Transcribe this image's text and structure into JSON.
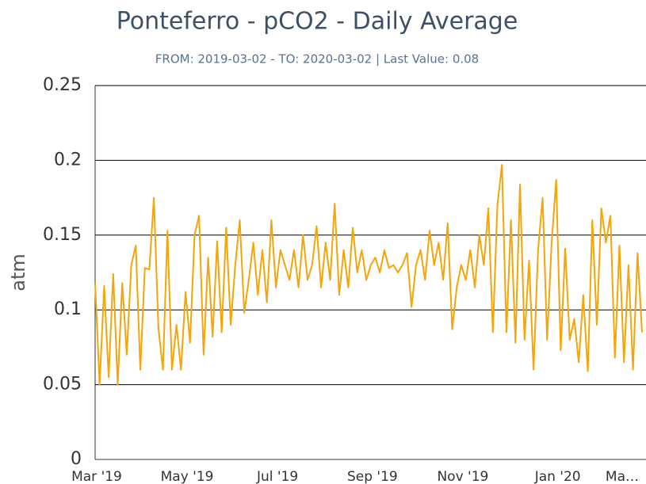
{
  "chart_data": {
    "type": "line",
    "title": "Ponteferro - pCO2 - Daily Average",
    "subtitle": "FROM: 2019-03-02 - TO: 2020-03-02 | Last Value: 0.08",
    "y_label": "atm",
    "ylim": [
      0,
      0.25
    ],
    "yticks": [
      0,
      0.05,
      0.1,
      0.15,
      0.2,
      0.25
    ],
    "grid": true,
    "categories": [
      "Mar '19",
      null,
      null,
      null,
      null,
      null,
      null,
      null,
      null,
      null,
      null,
      null,
      null,
      null,
      null,
      null,
      null,
      null,
      null,
      null,
      "May '19",
      null,
      null,
      null,
      null,
      null,
      null,
      null,
      null,
      null,
      null,
      null,
      null,
      null,
      null,
      null,
      null,
      null,
      null,
      null,
      "Jul '19",
      null,
      null,
      null,
      null,
      null,
      null,
      null,
      null,
      null,
      null,
      null,
      null,
      null,
      null,
      null,
      null,
      null,
      null,
      null,
      null,
      "Sep '19",
      null,
      null,
      null,
      null,
      null,
      null,
      null,
      null,
      null,
      null,
      null,
      null,
      null,
      null,
      null,
      null,
      null,
      null,
      null,
      "Nov '19",
      null,
      null,
      null,
      null,
      null,
      null,
      null,
      null,
      null,
      null,
      null,
      null,
      null,
      null,
      null,
      null,
      null,
      null,
      null,
      null,
      "Jan '20",
      null,
      null,
      null,
      null,
      null,
      null,
      null,
      null,
      null,
      null,
      null,
      null,
      null,
      null,
      null,
      null,
      null,
      null,
      "Ma…"
    ],
    "series": [
      {
        "name": "pCO2",
        "color": "#f5a40c",
        "values": [
          0.118,
          0.05,
          0.116,
          0.055,
          0.124,
          0.05,
          0.118,
          0.07,
          0.13,
          0.143,
          0.06,
          0.128,
          0.127,
          0.175,
          0.088,
          0.06,
          0.153,
          0.06,
          0.09,
          0.06,
          0.112,
          0.078,
          0.15,
          0.163,
          0.07,
          0.135,
          0.082,
          0.146,
          0.085,
          0.155,
          0.09,
          0.13,
          0.16,
          0.098,
          0.12,
          0.145,
          0.11,
          0.14,
          0.105,
          0.16,
          0.115,
          0.14,
          0.13,
          0.12,
          0.14,
          0.115,
          0.15,
          0.12,
          0.13,
          0.156,
          0.115,
          0.145,
          0.12,
          0.171,
          0.11,
          0.14,
          0.115,
          0.155,
          0.125,
          0.14,
          0.12,
          0.13,
          0.135,
          0.125,
          0.14,
          0.128,
          0.13,
          0.125,
          0.13,
          0.138,
          0.102,
          0.13,
          0.14,
          0.12,
          0.153,
          0.13,
          0.145,
          0.12,
          0.158,
          0.087,
          0.115,
          0.13,
          0.12,
          0.14,
          0.115,
          0.15,
          0.13,
          0.168,
          0.085,
          0.17,
          0.197,
          0.085,
          0.16,
          0.078,
          0.184,
          0.08,
          0.133,
          0.06,
          0.14,
          0.175,
          0.08,
          0.145,
          0.187,
          0.073,
          0.141,
          0.08,
          0.094,
          0.065,
          0.11,
          0.059,
          0.16,
          0.09,
          0.168,
          0.145,
          0.163,
          0.068,
          0.143,
          0.065,
          0.13,
          0.06,
          0.138,
          0.085
        ]
      }
    ]
  }
}
